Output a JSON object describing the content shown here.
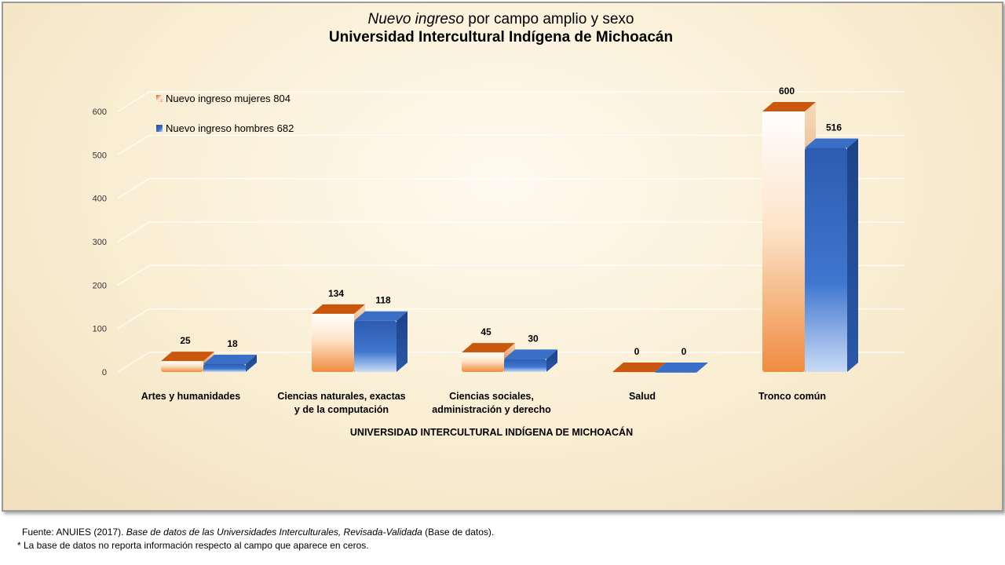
{
  "colors": {
    "mujeres_dark": "#c9580e",
    "mujeres_mid": "#ef9a56",
    "mujeres_light": "#fff3e6",
    "hombres_dark": "#1f4c98",
    "hombres_mid": "#3a6fc8",
    "hombres_light": "#c6d8f2",
    "gridline": "#ffffff",
    "tick_text": "#333333"
  },
  "title": {
    "line1_italic": "Nuevo ingreso",
    "line1_rest": " por campo amplio y sexo",
    "line2": "Universidad Intercultural Indígena de Michoacán"
  },
  "legend": {
    "mujeres": "Nuevo ingreso mujeres  804",
    "hombres": "Nuevo ingreso hombres 682"
  },
  "footer": {
    "source_prefix": "Fuente: ANUIES  (2017). ",
    "source_italic": "Base de datos de las Universidades  Interculturales, Revisada-Validada",
    "source_suffix": "  (Base de datos).",
    "note": "* La base de datos no reporta información respecto al campo que aparece en ceros."
  },
  "chart_data": {
    "type": "bar",
    "title": "Nuevo ingreso por campo amplio y sexo Universidad Intercultural Indígena de Michoacán",
    "xlabel": "UNIVERSIDAD INTERCULTURAL INDÍGENA DE MICHOACÁN",
    "ylabel": "",
    "ylim": [
      0,
      600
    ],
    "yticks": [
      0,
      100,
      200,
      300,
      400,
      500,
      600
    ],
    "grid": true,
    "legend_position": "top-left",
    "categories": [
      [
        "Artes y humanidades"
      ],
      [
        "Ciencias naturales, exactas",
        "y de la computación"
      ],
      [
        "Ciencias sociales,",
        "administración y derecho"
      ],
      [
        "Salud"
      ],
      [
        "Tronco común"
      ]
    ],
    "series": [
      {
        "name": "Nuevo ingreso mujeres  804",
        "values": [
          25,
          134,
          45,
          0,
          600
        ]
      },
      {
        "name": "Nuevo ingreso hombres 682",
        "values": [
          18,
          118,
          30,
          0,
          516
        ]
      }
    ]
  }
}
